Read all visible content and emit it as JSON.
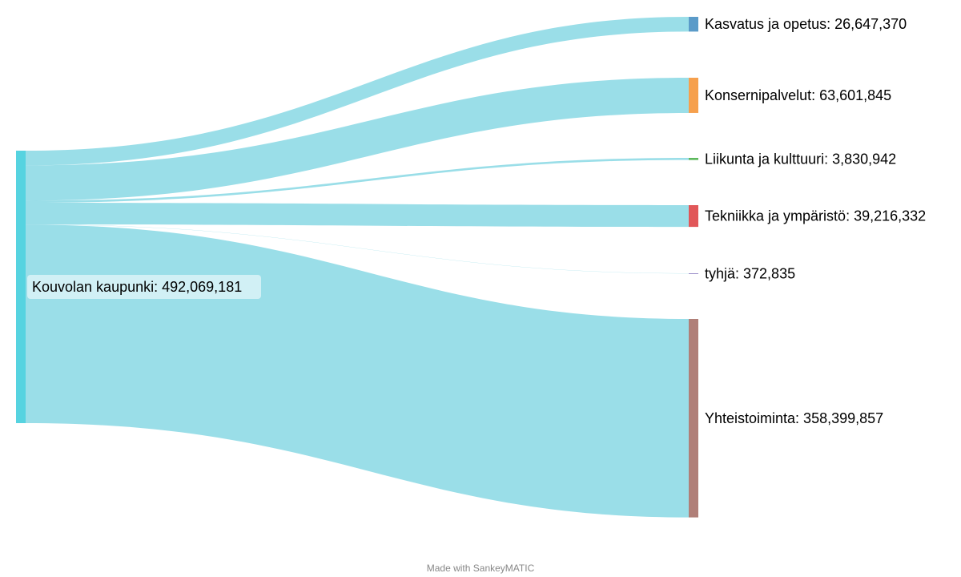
{
  "diagram": {
    "type": "sankey",
    "source": {
      "id": "kouvola",
      "label": "Kouvolan kaupunki: 492,069,181",
      "value": 492069181,
      "color": "#56d3e0"
    },
    "flow_color": "#56c8d8",
    "targets": [
      {
        "id": "kasvatus",
        "label": "Kasvatus ja opetus: 26,647,370",
        "value": 26647370,
        "color": "#5b9bc9"
      },
      {
        "id": "konserni",
        "label": "Konsernipalvelut: 63,601,845",
        "value": 63601845,
        "color": "#f6a04d"
      },
      {
        "id": "liikunta",
        "label": "Liikunta ja kulttuuri: 3,830,942",
        "value": 3830942,
        "color": "#5cb85c"
      },
      {
        "id": "tekniikka",
        "label": "Tekniikka ja ympäristö: 39,216,332",
        "value": 39216332,
        "color": "#e15759"
      },
      {
        "id": "tyhja",
        "label": "tyhjä: 372,835",
        "value": 372835,
        "color": "#9b8fc9"
      },
      {
        "id": "yhteistoiminta",
        "label": "Yhteistoiminta: 358,399,857",
        "value": 358399857,
        "color": "#b07f78"
      }
    ]
  },
  "footer": {
    "credit": "Made with SankeyMATIC"
  }
}
